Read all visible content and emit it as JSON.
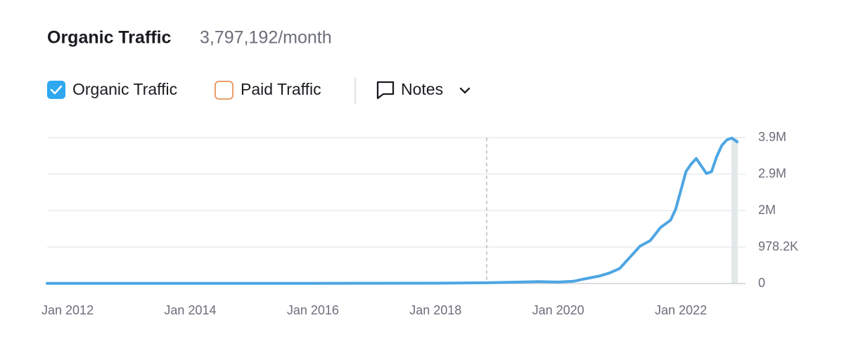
{
  "chart_data": {
    "type": "line",
    "title": "Organic Traffic",
    "subtitle": "3,797,192/month",
    "inactive_series": {
      "name": "Paid Traffic",
      "color": "#e8935a"
    },
    "notes_label": "Notes",
    "x": [
      "2011-09",
      "2014-01",
      "2016-01",
      "2018-01",
      "2018-11",
      "2019-09",
      "2020-01",
      "2020-04",
      "2020-06",
      "2020-09",
      "2020-11",
      "2021-01",
      "2021-03",
      "2021-05",
      "2021-07",
      "2021-09",
      "2021-11",
      "2021-12",
      "2022-01",
      "2022-02",
      "2022-03",
      "2022-04",
      "2022-05",
      "2022-06",
      "2022-07",
      "2022-08",
      "2022-09",
      "2022-10",
      "2022-11",
      "2022-12"
    ],
    "series": [
      {
        "name": "Organic Traffic",
        "color": "#4ea6e3",
        "values": [
          3000,
          3000,
          5000,
          10000,
          20000,
          50000,
          40000,
          60000,
          120000,
          200000,
          280000,
          400000,
          700000,
          1000000,
          1150000,
          1500000,
          1700000,
          2000000,
          2500000,
          3000000,
          3200000,
          3350000,
          3150000,
          2950000,
          3000000,
          3400000,
          3700000,
          3850000,
          3900000,
          3797192
        ]
      }
    ],
    "xlim": [
      "2011-09",
      "2022-12"
    ],
    "xticks": [
      {
        "value": "2012-01",
        "label": "Jan 2012"
      },
      {
        "value": "2014-01",
        "label": "Jan 2014"
      },
      {
        "value": "2016-01",
        "label": "Jan 2016"
      },
      {
        "value": "2018-01",
        "label": "Jan 2018"
      },
      {
        "value": "2020-01",
        "label": "Jan 2020"
      },
      {
        "value": "2022-01",
        "label": "Jan 2022"
      }
    ],
    "ylim": [
      0,
      3912800
    ],
    "yticks": [
      0,
      {
        "value": 978200,
        "label": "978.2K"
      },
      {
        "value": 1956400,
        "label": "2M"
      },
      {
        "value": 2934600,
        "label": "2.9M"
      },
      {
        "value": 3912800,
        "label": "3.9M"
      }
    ],
    "vline_x": "2018-11",
    "grid": true
  }
}
